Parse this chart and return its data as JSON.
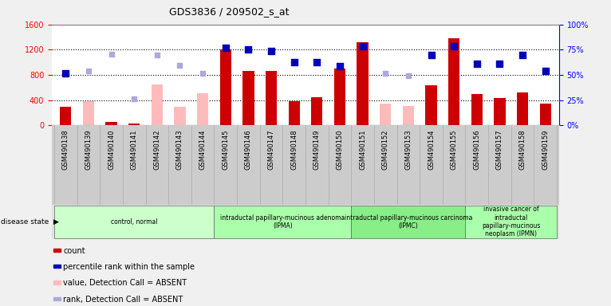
{
  "title": "GDS3836 / 209502_s_at",
  "samples": [
    "GSM490138",
    "GSM490139",
    "GSM490140",
    "GSM490141",
    "GSM490142",
    "GSM490143",
    "GSM490144",
    "GSM490145",
    "GSM490146",
    "GSM490147",
    "GSM490148",
    "GSM490149",
    "GSM490150",
    "GSM490151",
    "GSM490152",
    "GSM490153",
    "GSM490154",
    "GSM490155",
    "GSM490156",
    "GSM490157",
    "GSM490158",
    "GSM490159"
  ],
  "count_present": [
    290,
    null,
    60,
    30,
    null,
    null,
    null,
    1200,
    870,
    860,
    390,
    450,
    900,
    1320,
    null,
    null,
    640,
    1380,
    500,
    430,
    520,
    350
  ],
  "count_absent": [
    null,
    390,
    null,
    null,
    650,
    290,
    510,
    null,
    null,
    null,
    null,
    null,
    null,
    null,
    350,
    310,
    null,
    null,
    null,
    null,
    null,
    null
  ],
  "rank_present": [
    830,
    null,
    null,
    null,
    null,
    null,
    null,
    1230,
    1210,
    1180,
    1000,
    1000,
    940,
    1260,
    null,
    null,
    1120,
    1250,
    980,
    980,
    1120,
    870
  ],
  "rank_absent": [
    null,
    870,
    1130,
    420,
    1120,
    950,
    820,
    null,
    null,
    null,
    null,
    null,
    null,
    null,
    830,
    790,
    null,
    null,
    null,
    null,
    null,
    null
  ],
  "disease_groups": [
    {
      "label": "control, normal",
      "start": 0,
      "end": 6,
      "color": "#ccffcc"
    },
    {
      "label": "intraductal papillary-mucinous adenoma\n(IPMA)",
      "start": 7,
      "end": 12,
      "color": "#aaffaa"
    },
    {
      "label": "intraductal papillary-mucinous carcinoma\n(IPMC)",
      "start": 13,
      "end": 17,
      "color": "#88ee88"
    },
    {
      "label": "invasive cancer of\nintraductal\npapillary-mucinous\nneoplasm (IPMN)",
      "start": 18,
      "end": 21,
      "color": "#aaffaa"
    }
  ],
  "ylim_left": [
    0,
    1600
  ],
  "ylim_right": [
    0,
    100
  ],
  "yticks_left": [
    0,
    400,
    800,
    1200,
    1600
  ],
  "yticks_right": [
    0,
    25,
    50,
    75,
    100
  ],
  "bar_color_present": "#cc0000",
  "bar_color_absent": "#ffbbbb",
  "dot_color_present": "#0000bb",
  "dot_color_absent": "#aaaadd",
  "fig_bg": "#f0f0f0",
  "plot_bg": "#ffffff",
  "xtick_bg": "#cccccc",
  "legend_items": [
    {
      "label": "count",
      "color": "#cc0000"
    },
    {
      "label": "percentile rank within the sample",
      "color": "#0000bb"
    },
    {
      "label": "value, Detection Call = ABSENT",
      "color": "#ffbbbb"
    },
    {
      "label": "rank, Detection Call = ABSENT",
      "color": "#aaaadd"
    }
  ]
}
